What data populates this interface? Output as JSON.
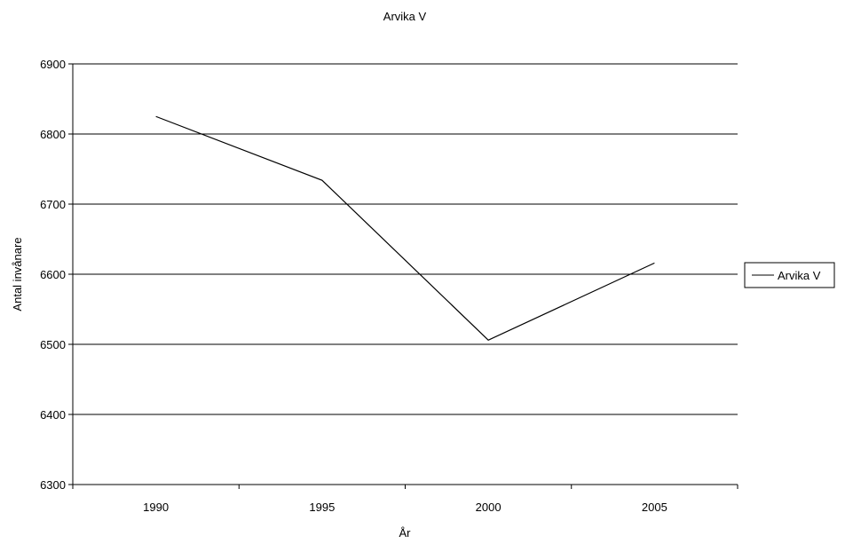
{
  "chart_data": {
    "type": "line",
    "title": "Arvika V",
    "xlabel": "År",
    "ylabel": "Antal invånare",
    "categories": [
      "1990",
      "1995",
      "2000",
      "2005"
    ],
    "series": [
      {
        "name": "Arvika V",
        "values": [
          6825,
          6734,
          6506,
          6616
        ],
        "color": "#000000"
      }
    ],
    "ylim": [
      6300,
      6900
    ],
    "yticks": [
      "6300",
      "6400",
      "6500",
      "6600",
      "6700",
      "6800",
      "6900"
    ],
    "grid": true,
    "legend_position": "right"
  }
}
